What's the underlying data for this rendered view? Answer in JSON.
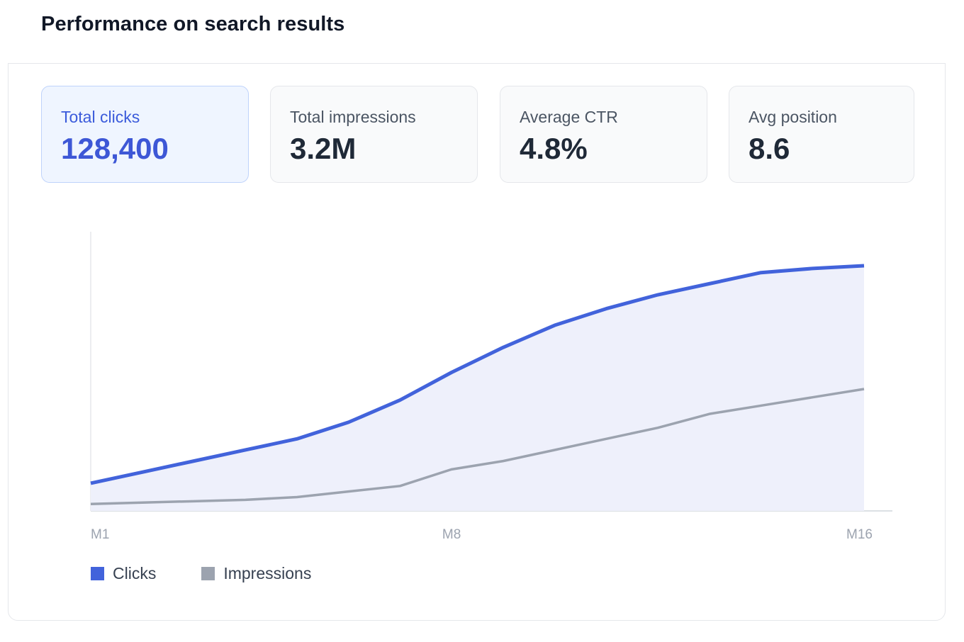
{
  "header": {
    "title": "Performance on search results"
  },
  "metrics": [
    {
      "label": "Total clicks",
      "value": "128,400",
      "active": true
    },
    {
      "label": "Total impressions",
      "value": "3.2M",
      "active": false
    },
    {
      "label": "Average CTR",
      "value": "4.8%",
      "active": false
    },
    {
      "label": "Avg position",
      "value": "8.6",
      "active": false
    }
  ],
  "colors": {
    "clicks": "#4263db",
    "impressions": "#9ca3af",
    "area": "#eef0fb",
    "accent": "#3d57d6"
  },
  "chart_data": {
    "type": "area",
    "x": [
      "M1",
      "M2",
      "M3",
      "M4",
      "M5",
      "M6",
      "M7",
      "M8",
      "M9",
      "M10",
      "M11",
      "M12",
      "M13",
      "M14",
      "M15",
      "M16"
    ],
    "tick_labels": [
      "M1",
      "M8",
      "M16"
    ],
    "series": [
      {
        "name": "Clicks",
        "values": [
          10,
          14,
          18,
          22,
          26,
          32,
          40,
          50,
          59,
          67,
          73,
          78,
          82,
          86,
          87.5,
          88.5
        ],
        "filled": true
      },
      {
        "name": "Impressions",
        "values": [
          2.5,
          3,
          3.5,
          4,
          5,
          7,
          9,
          15,
          18,
          22,
          26,
          30,
          35,
          38,
          41,
          44
        ]
      }
    ],
    "ylim": [
      0,
      100
    ],
    "grid": false,
    "legend": "bottom-left"
  },
  "legend": {
    "clicks": "Clicks",
    "impressions": "Impressions"
  }
}
